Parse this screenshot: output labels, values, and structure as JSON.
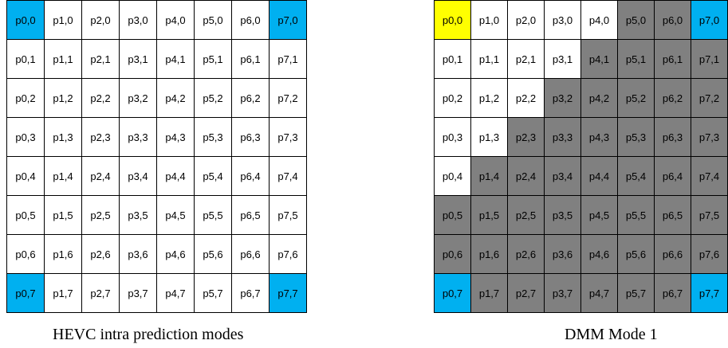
{
  "colors": {
    "background": "#ffffff",
    "corner": "#00b0f0",
    "highlight": "#ffff00",
    "region": "#808080",
    "grid_line": "#000000"
  },
  "left_panel": {
    "caption": "HEVC intra prediction modes",
    "cell_colors": [
      [
        "corner",
        "white",
        "white",
        "white",
        "white",
        "white",
        "white",
        "corner"
      ],
      [
        "white",
        "white",
        "white",
        "white",
        "white",
        "white",
        "white",
        "white"
      ],
      [
        "white",
        "white",
        "white",
        "white",
        "white",
        "white",
        "white",
        "white"
      ],
      [
        "white",
        "white",
        "white",
        "white",
        "white",
        "white",
        "white",
        "white"
      ],
      [
        "white",
        "white",
        "white",
        "white",
        "white",
        "white",
        "white",
        "white"
      ],
      [
        "white",
        "white",
        "white",
        "white",
        "white",
        "white",
        "white",
        "white"
      ],
      [
        "white",
        "white",
        "white",
        "white",
        "white",
        "white",
        "white",
        "white"
      ],
      [
        "corner",
        "white",
        "white",
        "white",
        "white",
        "white",
        "white",
        "corner"
      ]
    ]
  },
  "right_panel": {
    "caption": "DMM Mode 1",
    "cell_colors": [
      [
        "highlight",
        "white",
        "white",
        "white",
        "white",
        "region",
        "region",
        "corner"
      ],
      [
        "white",
        "white",
        "white",
        "white",
        "region",
        "region",
        "region",
        "region"
      ],
      [
        "white",
        "white",
        "white",
        "region",
        "region",
        "region",
        "region",
        "region"
      ],
      [
        "white",
        "white",
        "region",
        "region",
        "region",
        "region",
        "region",
        "region"
      ],
      [
        "white",
        "region",
        "region",
        "region",
        "region",
        "region",
        "region",
        "region"
      ],
      [
        "region",
        "region",
        "region",
        "region",
        "region",
        "region",
        "region",
        "region"
      ],
      [
        "region",
        "region",
        "region",
        "region",
        "region",
        "region",
        "region",
        "region"
      ],
      [
        "corner",
        "region",
        "region",
        "region",
        "region",
        "region",
        "region",
        "corner"
      ]
    ]
  },
  "cell_labels": [
    [
      "p0,0",
      "p1,0",
      "p2,0",
      "p3,0",
      "p4,0",
      "p5,0",
      "p6,0",
      "p7,0"
    ],
    [
      "p0,1",
      "p1,1",
      "p2,1",
      "p3,1",
      "p4,1",
      "p5,1",
      "p6,1",
      "p7,1"
    ],
    [
      "p0,2",
      "p1,2",
      "p2,2",
      "p3,2",
      "p4,2",
      "p5,2",
      "p6,2",
      "p7,2"
    ],
    [
      "p0,3",
      "p1,3",
      "p2,3",
      "p3,3",
      "p4,3",
      "p5,3",
      "p6,3",
      "p7,3"
    ],
    [
      "p0,4",
      "p1,4",
      "p2,4",
      "p3,4",
      "p4,4",
      "p5,4",
      "p6,4",
      "p7,4"
    ],
    [
      "p0,5",
      "p1,5",
      "p2,5",
      "p3,5",
      "p4,5",
      "p5,5",
      "p6,5",
      "p7,5"
    ],
    [
      "p0,6",
      "p1,6",
      "p2,6",
      "p3,6",
      "p4,6",
      "p5,6",
      "p6,6",
      "p7,6"
    ],
    [
      "p0,7",
      "p1,7",
      "p2,7",
      "p3,7",
      "p4,7",
      "p5,7",
      "p6,7",
      "p7,7"
    ]
  ]
}
